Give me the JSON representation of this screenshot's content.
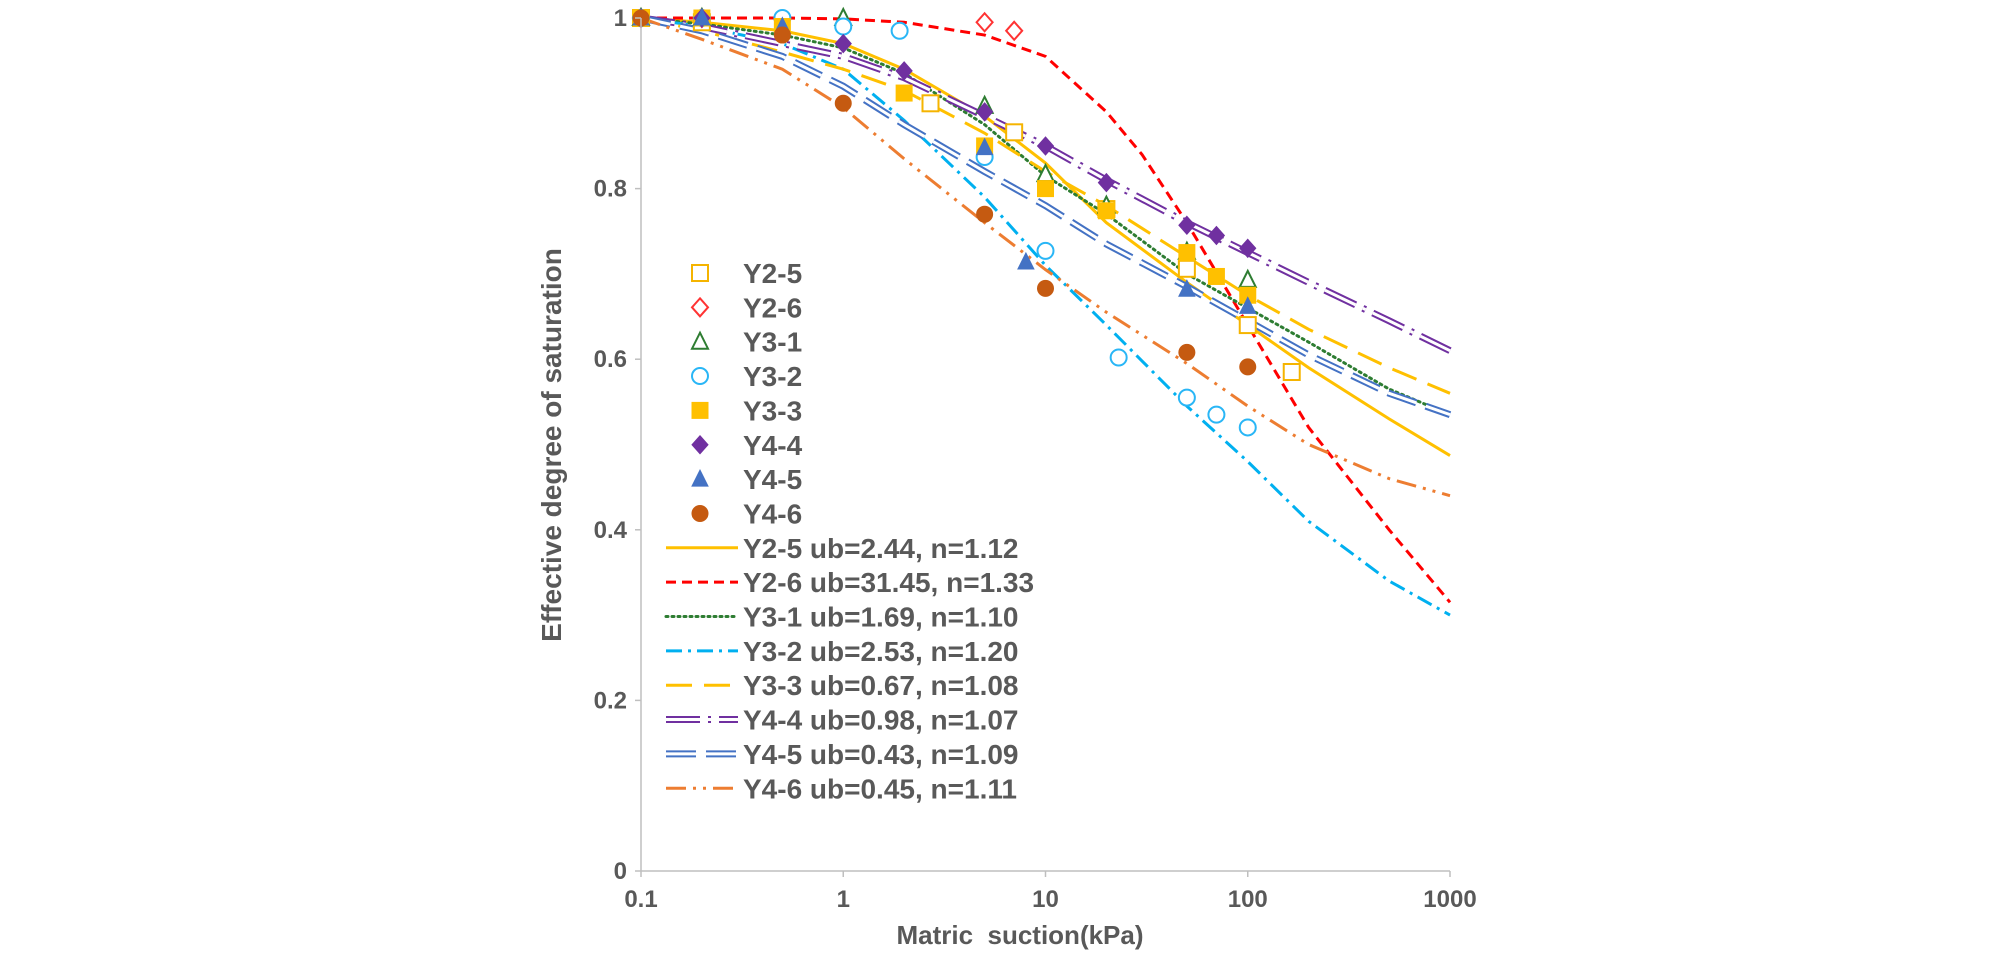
{
  "chart_data": {
    "type": "scatter",
    "title": "",
    "xlabel": "Matric  suction(kPa)",
    "ylabel": "Effective degree of saturation",
    "x_scale": "log",
    "xlim": [
      0.1,
      1000
    ],
    "ylim": [
      0,
      1
    ],
    "x_ticks": [
      "0.1",
      "1",
      "10",
      "100",
      "1000"
    ],
    "y_ticks": [
      "0",
      "0.2",
      "0.4",
      "0.6",
      "0.8",
      "1"
    ],
    "grid": false,
    "legend_position": "left-inside",
    "series": [
      {
        "name": "Y2-5",
        "kind": "points",
        "marker": "square-open",
        "color": "#F5B400",
        "points": [
          [
            0.1,
            1.0
          ],
          [
            0.2,
            0.995
          ],
          [
            2.7,
            0.9
          ],
          [
            7,
            0.866
          ],
          [
            20,
            0.776
          ],
          [
            50,
            0.706
          ],
          [
            100,
            0.64
          ],
          [
            165,
            0.585
          ]
        ]
      },
      {
        "name": "Y2-6",
        "kind": "points",
        "marker": "diamond-open",
        "color": "#FF3333",
        "points": [
          [
            0.1,
            1.0
          ],
          [
            0.2,
            1.0
          ],
          [
            5,
            0.995
          ],
          [
            7,
            0.985
          ]
        ]
      },
      {
        "name": "Y3-1",
        "kind": "points",
        "marker": "triangle-open",
        "color": "#2E7D32",
        "points": [
          [
            0.1,
            1.0
          ],
          [
            0.2,
            1.0
          ],
          [
            1,
            1.0
          ],
          [
            5,
            0.897
          ],
          [
            10,
            0.817
          ],
          [
            20,
            0.78
          ],
          [
            50,
            0.726
          ],
          [
            100,
            0.693
          ]
        ]
      },
      {
        "name": "Y3-2",
        "kind": "points",
        "marker": "circle-open",
        "color": "#29B6F6",
        "points": [
          [
            0.1,
            1.0
          ],
          [
            0.2,
            1.0
          ],
          [
            0.5,
            1.0
          ],
          [
            1,
            0.99
          ],
          [
            1.9,
            0.985
          ],
          [
            5,
            0.837
          ],
          [
            10,
            0.727
          ],
          [
            23,
            0.602
          ],
          [
            50,
            0.555
          ],
          [
            70,
            0.535
          ],
          [
            100,
            0.52
          ]
        ]
      },
      {
        "name": "Y3-3",
        "kind": "points",
        "marker": "square",
        "color": "#FFC000",
        "points": [
          [
            0.1,
            1.0
          ],
          [
            0.2,
            1.0
          ],
          [
            0.5,
            0.99
          ],
          [
            2,
            0.912
          ],
          [
            5,
            0.85
          ],
          [
            10,
            0.8
          ],
          [
            20,
            0.774
          ],
          [
            50,
            0.725
          ],
          [
            70,
            0.697
          ],
          [
            100,
            0.675
          ]
        ]
      },
      {
        "name": "Y4-4",
        "kind": "points",
        "marker": "diamond",
        "color": "#7030A0",
        "points": [
          [
            0.1,
            1.0
          ],
          [
            0.2,
            1.0
          ],
          [
            1,
            0.97
          ],
          [
            2,
            0.938
          ],
          [
            5,
            0.89
          ],
          [
            10,
            0.85
          ],
          [
            20,
            0.807
          ],
          [
            50,
            0.757
          ],
          [
            70,
            0.745
          ],
          [
            100,
            0.73
          ]
        ]
      },
      {
        "name": "Y4-5",
        "kind": "points",
        "marker": "triangle",
        "color": "#4472C4",
        "points": [
          [
            0.1,
            1.0
          ],
          [
            0.2,
            1.0
          ],
          [
            0.5,
            0.99
          ],
          [
            5,
            0.848
          ],
          [
            8,
            0.714
          ],
          [
            50,
            0.682
          ],
          [
            100,
            0.662
          ]
        ]
      },
      {
        "name": "Y4-6",
        "kind": "points",
        "marker": "circle",
        "color": "#C55A11",
        "points": [
          [
            0.1,
            1.0
          ],
          [
            0.5,
            0.98
          ],
          [
            1,
            0.9
          ],
          [
            5,
            0.77
          ],
          [
            10,
            0.683
          ],
          [
            50,
            0.608
          ],
          [
            100,
            0.591
          ]
        ]
      },
      {
        "name": "Y2-5 ub=2.44, n=1.12",
        "kind": "line",
        "style": "solid",
        "color": "#FFC000",
        "x": [
          0.1,
          0.2,
          0.5,
          1,
          2,
          5,
          10,
          20,
          50,
          100,
          200,
          500,
          1000
        ],
        "y": [
          1.0,
          0.995,
          0.985,
          0.97,
          0.94,
          0.885,
          0.83,
          0.76,
          0.69,
          0.64,
          0.59,
          0.53,
          0.487
        ]
      },
      {
        "name": "Y2-6 ub=31.45, n=1.33",
        "kind": "line",
        "style": "dashed",
        "color": "#FF0000",
        "x": [
          0.1,
          0.5,
          1,
          2,
          5,
          10,
          20,
          30,
          50,
          100,
          200,
          500,
          1000
        ],
        "y": [
          1.0,
          1.0,
          0.999,
          0.995,
          0.98,
          0.955,
          0.89,
          0.84,
          0.76,
          0.64,
          0.52,
          0.4,
          0.315
        ]
      },
      {
        "name": "Y3-1 ub=1.69, n=1.10",
        "kind": "line",
        "style": "dotted",
        "color": "#2E7D32",
        "x": [
          0.1,
          0.2,
          0.5,
          1,
          2,
          5,
          10,
          20,
          50,
          100,
          200,
          500,
          1000
        ],
        "y": [
          1.0,
          0.993,
          0.98,
          0.965,
          0.935,
          0.875,
          0.815,
          0.77,
          0.7,
          0.66,
          0.62,
          0.565,
          0.535
        ]
      },
      {
        "name": "Y3-2 ub=2.53, n=1.20",
        "kind": "line",
        "style": "dashdot",
        "color": "#00B0F0",
        "x": [
          0.1,
          0.2,
          0.5,
          1,
          2,
          5,
          10,
          20,
          50,
          100,
          200,
          500,
          1000
        ],
        "y": [
          1.0,
          0.99,
          0.97,
          0.94,
          0.88,
          0.79,
          0.71,
          0.64,
          0.545,
          0.48,
          0.41,
          0.34,
          0.3
        ]
      },
      {
        "name": "Y3-3 ub=0.67, n=1.08",
        "kind": "line",
        "style": "longdash",
        "color": "#FFC000",
        "x": [
          0.1,
          0.2,
          0.5,
          1,
          2,
          5,
          10,
          20,
          50,
          100,
          200,
          500,
          1000
        ],
        "y": [
          1.0,
          0.985,
          0.96,
          0.94,
          0.915,
          0.865,
          0.82,
          0.78,
          0.72,
          0.675,
          0.635,
          0.59,
          0.56
        ]
      },
      {
        "name": "Y4-4 ub=0.98, n=1.07",
        "kind": "line",
        "style": "double-dashdot",
        "color": "#7030A0",
        "x": [
          0.1,
          0.2,
          0.5,
          1,
          2,
          5,
          10,
          20,
          50,
          100,
          200,
          500,
          1000
        ],
        "y": [
          1.0,
          0.99,
          0.97,
          0.955,
          0.93,
          0.885,
          0.85,
          0.81,
          0.76,
          0.725,
          0.69,
          0.645,
          0.61
        ]
      },
      {
        "name": "Y4-5 ub=0.43, n=1.09",
        "kind": "line",
        "style": "double-dash",
        "color": "#4472C4",
        "x": [
          0.1,
          0.2,
          0.5,
          1,
          2,
          5,
          10,
          20,
          50,
          100,
          200,
          500,
          1000
        ],
        "y": [
          1.0,
          0.985,
          0.955,
          0.92,
          0.875,
          0.82,
          0.78,
          0.735,
          0.685,
          0.645,
          0.605,
          0.56,
          0.535
        ]
      },
      {
        "name": "Y4-6 ub=0.45, n=1.11",
        "kind": "line",
        "style": "dashdotdot",
        "color": "#ED7D31",
        "x": [
          0.1,
          0.2,
          0.5,
          1,
          2,
          5,
          10,
          20,
          50,
          100,
          200,
          500,
          1000
        ],
        "y": [
          1.0,
          0.975,
          0.94,
          0.895,
          0.835,
          0.76,
          0.705,
          0.655,
          0.595,
          0.545,
          0.5,
          0.46,
          0.44
        ]
      }
    ]
  }
}
